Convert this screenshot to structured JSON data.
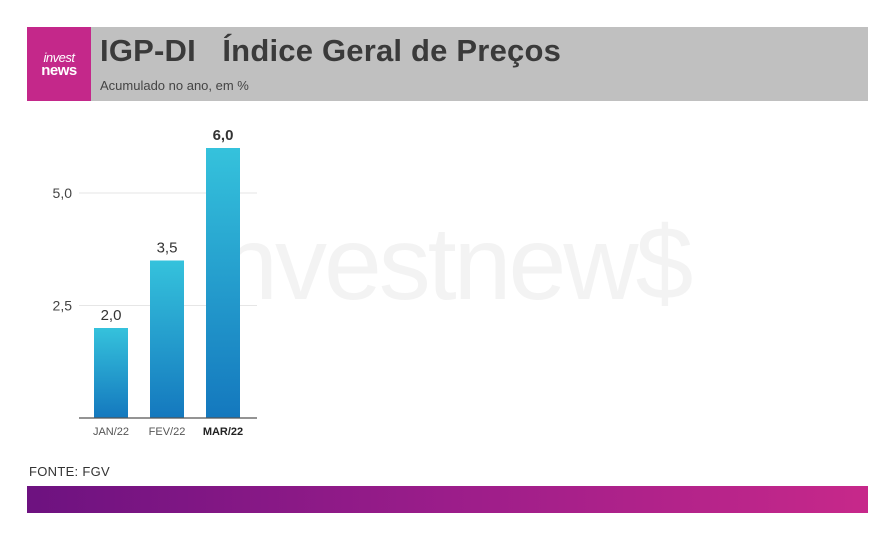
{
  "header": {
    "logo_line1": "invest",
    "logo_line2": "news",
    "title": "IGP-DI   Índice Geral de Preços",
    "subtitle": "Acumulado no ano, em %"
  },
  "watermark": "investnew$",
  "source": "FONTE: FGV",
  "colors": {
    "header_bg": "#c0c0c0",
    "brand": "#c4288a",
    "bar_top": "#35c2dc",
    "bar_bottom": "#1478be"
  },
  "chart_data": {
    "type": "bar",
    "categories": [
      "JAN/22",
      "FEV/22",
      "MAR/22"
    ],
    "values": [
      2.0,
      3.5,
      6.0
    ],
    "value_labels": [
      "2,0",
      "3,5",
      "6,0"
    ],
    "y_ticks": [
      2.5,
      5.0
    ],
    "y_tick_labels": [
      "2,5",
      "5,0"
    ],
    "ylim": [
      0,
      6.0
    ],
    "highlight_index": 2,
    "grid": true
  }
}
